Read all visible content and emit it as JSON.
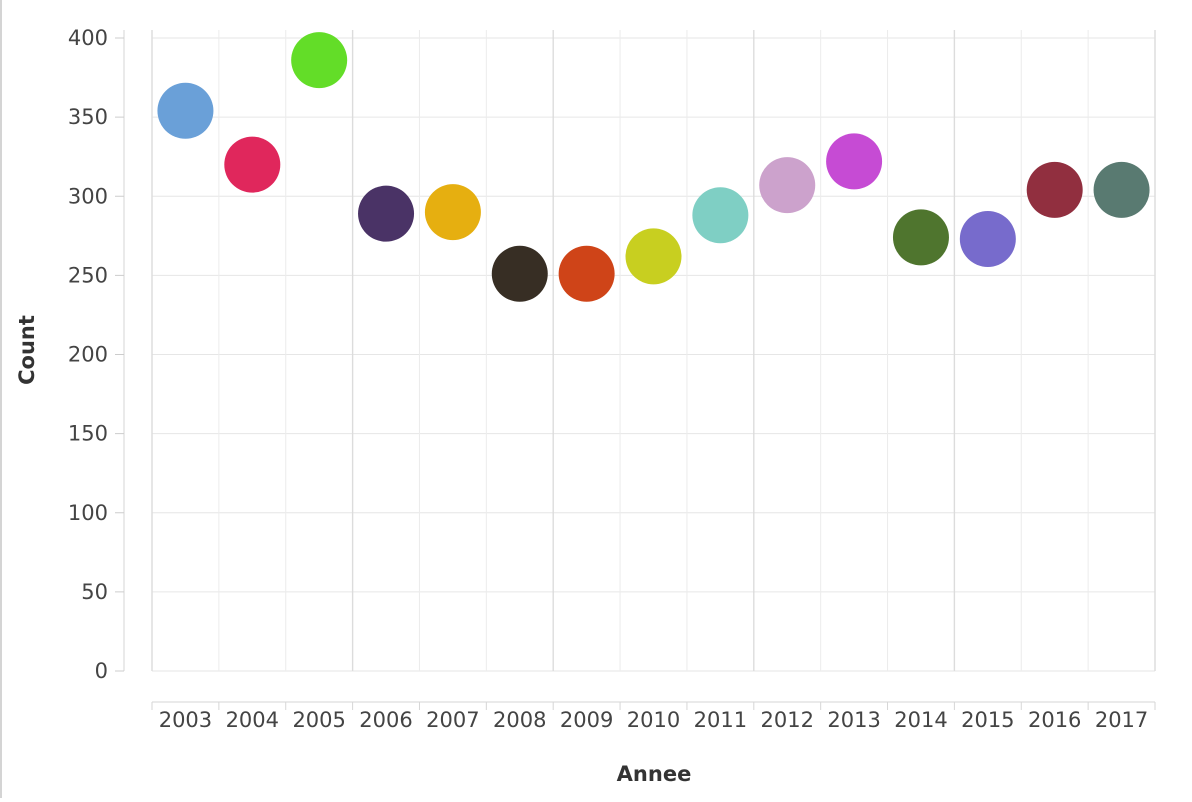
{
  "chart_data": {
    "type": "scatter",
    "xlabel": "Annee",
    "ylabel": "Count",
    "ylim": [
      0,
      400
    ],
    "yticks": [
      0,
      50,
      100,
      150,
      200,
      250,
      300,
      350,
      400
    ],
    "grid": true,
    "categories": [
      "2003",
      "2004",
      "2005",
      "2006",
      "2007",
      "2008",
      "2009",
      "2010",
      "2011",
      "2012",
      "2013",
      "2014",
      "2015",
      "2016",
      "2017"
    ],
    "values": [
      354,
      320,
      386,
      289,
      290,
      251,
      251,
      262,
      288,
      307,
      322,
      274,
      273,
      304,
      304
    ],
    "colors": [
      "#6aa0d8",
      "#e0275c",
      "#63dd28",
      "#4a3366",
      "#e6af10",
      "#372e24",
      "#cf4418",
      "#c8cf20",
      "#7fcfc4",
      "#cca2cc",
      "#c64bd4",
      "#4f752e",
      "#776bcc",
      "#912f3f",
      "#597a71"
    ]
  }
}
